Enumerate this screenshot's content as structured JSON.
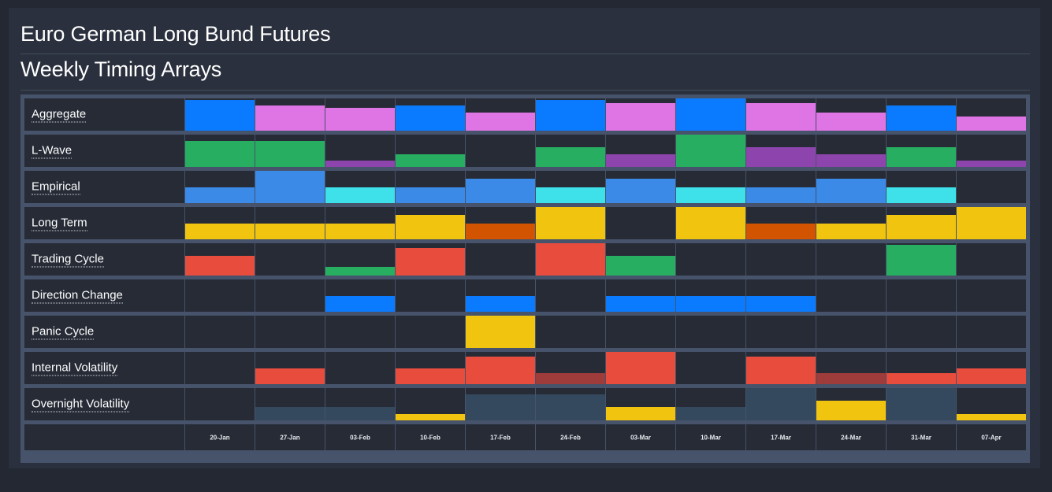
{
  "header": {
    "title": "Euro German Long Bund Futures",
    "subtitle": "Weekly Timing Arrays"
  },
  "dates": [
    "20-Jan",
    "27-Jan",
    "03-Feb",
    "10-Feb",
    "17-Feb",
    "24-Feb",
    "03-Mar",
    "10-Mar",
    "17-Mar",
    "24-Mar",
    "31-Mar",
    "07-Apr"
  ],
  "colors": {
    "blue": "#0a7bff",
    "pink": "#df75e4",
    "green": "#27ae60",
    "purple": "#8e44ad",
    "lightblue": "#3b8ae8",
    "cyan": "#3ee1ea",
    "yellow": "#f1c40f",
    "orange": "#d35400",
    "red": "#e74c3c",
    "darkred": "#9e3b3b",
    "slate": "#34495e"
  },
  "rows": [
    {
      "label": "Aggregate",
      "cells": [
        {
          "c": "blue",
          "v": 0.95
        },
        {
          "c": "pink",
          "v": 0.78
        },
        {
          "c": "pink",
          "v": 0.7
        },
        {
          "c": "blue",
          "v": 0.78
        },
        {
          "c": "pink",
          "v": 0.55
        },
        {
          "c": "blue",
          "v": 0.95
        },
        {
          "c": "pink",
          "v": 0.86
        },
        {
          "c": "blue",
          "v": 1.0
        },
        {
          "c": "pink",
          "v": 0.86
        },
        {
          "c": "pink",
          "v": 0.55
        },
        {
          "c": "blue",
          "v": 0.78
        },
        {
          "c": "pink",
          "v": 0.45
        }
      ]
    },
    {
      "label": "L-Wave",
      "cells": [
        {
          "c": "green",
          "v": 0.8
        },
        {
          "c": "green",
          "v": 0.8
        },
        {
          "c": "purple",
          "v": 0.2
        },
        {
          "c": "green",
          "v": 0.4
        },
        {
          "c": "none",
          "v": 0
        },
        {
          "c": "green",
          "v": 0.6
        },
        {
          "c": "purple",
          "v": 0.4
        },
        {
          "c": "green",
          "v": 1.0
        },
        {
          "c": "purple",
          "v": 0.6
        },
        {
          "c": "purple",
          "v": 0.4
        },
        {
          "c": "green",
          "v": 0.6
        },
        {
          "c": "purple",
          "v": 0.2
        }
      ]
    },
    {
      "label": "Empirical",
      "cells": [
        {
          "c": "lightblue",
          "v": 0.5
        },
        {
          "c": "lightblue",
          "v": 1.0
        },
        {
          "c": "cyan",
          "v": 0.5
        },
        {
          "c": "lightblue",
          "v": 0.5
        },
        {
          "c": "lightblue",
          "v": 0.75
        },
        {
          "c": "cyan",
          "v": 0.5
        },
        {
          "c": "lightblue",
          "v": 0.75
        },
        {
          "c": "cyan",
          "v": 0.5
        },
        {
          "c": "lightblue",
          "v": 0.5
        },
        {
          "c": "lightblue",
          "v": 0.75
        },
        {
          "c": "cyan",
          "v": 0.5
        },
        {
          "c": "none",
          "v": 0
        }
      ]
    },
    {
      "label": "Long Term",
      "cells": [
        {
          "c": "yellow",
          "v": 0.5
        },
        {
          "c": "yellow",
          "v": 0.5
        },
        {
          "c": "yellow",
          "v": 0.5
        },
        {
          "c": "yellow",
          "v": 0.75
        },
        {
          "c": "orange",
          "v": 0.5
        },
        {
          "c": "yellow",
          "v": 1.0
        },
        {
          "c": "none",
          "v": 0
        },
        {
          "c": "yellow",
          "v": 1.0
        },
        {
          "c": "orange",
          "v": 0.5
        },
        {
          "c": "yellow",
          "v": 0.5
        },
        {
          "c": "yellow",
          "v": 0.75
        },
        {
          "c": "yellow",
          "v": 1.0
        }
      ]
    },
    {
      "label": "Trading Cycle",
      "cells": [
        {
          "c": "red",
          "v": 0.6
        },
        {
          "c": "none",
          "v": 0
        },
        {
          "c": "green",
          "v": 0.28
        },
        {
          "c": "red",
          "v": 0.85
        },
        {
          "c": "none",
          "v": 0
        },
        {
          "c": "red",
          "v": 1.0
        },
        {
          "c": "green",
          "v": 0.6
        },
        {
          "c": "none",
          "v": 0
        },
        {
          "c": "none",
          "v": 0
        },
        {
          "c": "none",
          "v": 0
        },
        {
          "c": "green",
          "v": 0.95
        },
        {
          "c": "none",
          "v": 0
        }
      ]
    },
    {
      "label": "Direction Change",
      "cells": [
        {
          "c": "none",
          "v": 0
        },
        {
          "c": "none",
          "v": 0
        },
        {
          "c": "blue",
          "v": 0.5
        },
        {
          "c": "none",
          "v": 0
        },
        {
          "c": "blue",
          "v": 0.5
        },
        {
          "c": "none",
          "v": 0
        },
        {
          "c": "blue",
          "v": 0.5
        },
        {
          "c": "blue",
          "v": 0.5
        },
        {
          "c": "blue",
          "v": 0.5
        },
        {
          "c": "none",
          "v": 0
        },
        {
          "c": "none",
          "v": 0
        },
        {
          "c": "none",
          "v": 0
        }
      ]
    },
    {
      "label": "Panic Cycle",
      "cells": [
        {
          "c": "none",
          "v": 0
        },
        {
          "c": "none",
          "v": 0
        },
        {
          "c": "none",
          "v": 0
        },
        {
          "c": "none",
          "v": 0
        },
        {
          "c": "yellow",
          "v": 1.0
        },
        {
          "c": "none",
          "v": 0
        },
        {
          "c": "none",
          "v": 0
        },
        {
          "c": "none",
          "v": 0
        },
        {
          "c": "none",
          "v": 0
        },
        {
          "c": "none",
          "v": 0
        },
        {
          "c": "none",
          "v": 0
        },
        {
          "c": "none",
          "v": 0
        }
      ]
    },
    {
      "label": "Internal Volatility",
      "cells": [
        {
          "c": "none",
          "v": 0
        },
        {
          "c": "red",
          "v": 0.5
        },
        {
          "c": "none",
          "v": 0
        },
        {
          "c": "red",
          "v": 0.5
        },
        {
          "c": "red",
          "v": 0.85
        },
        {
          "c": "darkred",
          "v": 0.35
        },
        {
          "c": "red",
          "v": 1.0
        },
        {
          "c": "none",
          "v": 0
        },
        {
          "c": "red",
          "v": 0.85
        },
        {
          "c": "darkred",
          "v": 0.35
        },
        {
          "c": "red",
          "v": 0.35
        },
        {
          "c": "red",
          "v": 0.5
        }
      ]
    },
    {
      "label": "Overnight Volatility",
      "cells": [
        {
          "c": "none",
          "v": 0
        },
        {
          "c": "slate",
          "v": 0.42
        },
        {
          "c": "slate",
          "v": 0.42
        },
        {
          "c": "yellow",
          "v": 0.2
        },
        {
          "c": "slate",
          "v": 0.8
        },
        {
          "c": "slate",
          "v": 0.8
        },
        {
          "c": "yellow",
          "v": 0.42
        },
        {
          "c": "slate",
          "v": 0.42
        },
        {
          "c": "slate",
          "v": 1.0
        },
        {
          "c": "yellow",
          "v": 0.62
        },
        {
          "c": "slate",
          "v": 1.0
        },
        {
          "c": "yellow",
          "v": 0.2
        }
      ]
    }
  ]
}
